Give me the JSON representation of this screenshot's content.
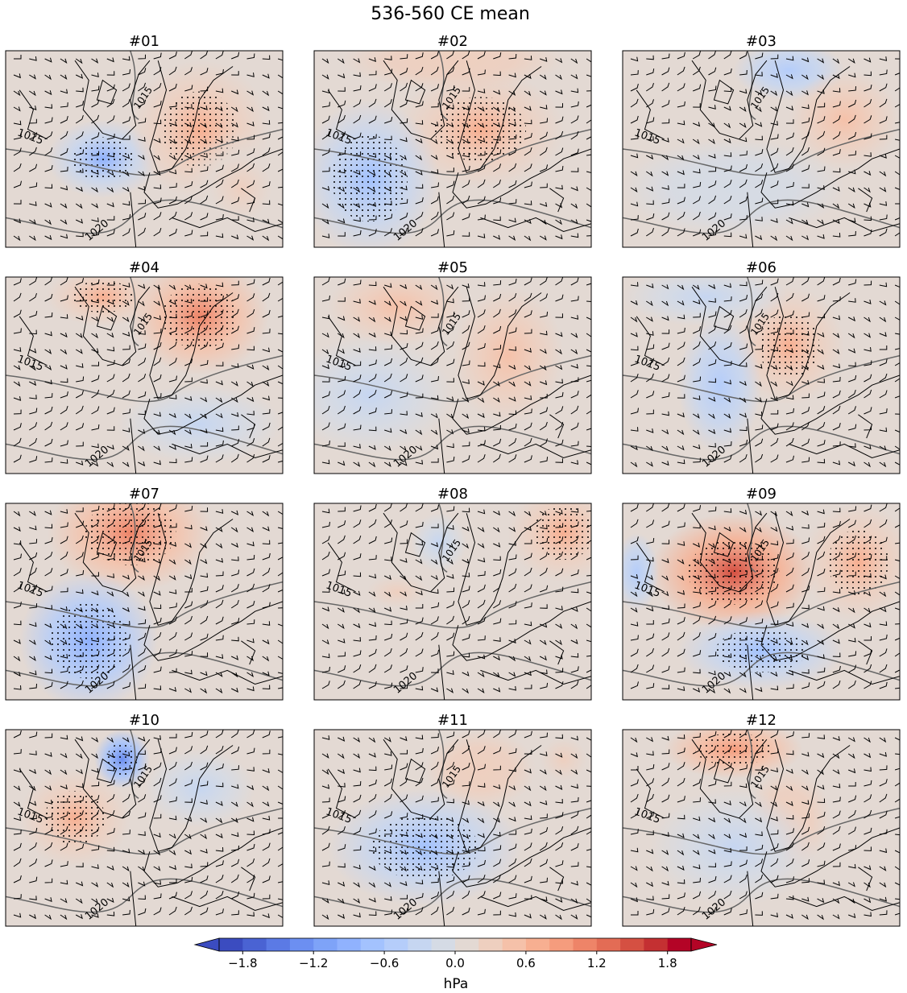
{
  "chart_data": {
    "type": "heatmap",
    "title": "536-560 CE mean",
    "panels": [
      {
        "title": "#01"
      },
      {
        "title": "#02"
      },
      {
        "title": "#03"
      },
      {
        "title": "#04"
      },
      {
        "title": "#05"
      },
      {
        "title": "#06"
      },
      {
        "title": "#07"
      },
      {
        "title": "#08"
      },
      {
        "title": "#09"
      },
      {
        "title": "#10"
      },
      {
        "title": "#11"
      },
      {
        "title": "#12"
      }
    ],
    "contour_labels": [
      "1015",
      "1020"
    ],
    "colorbar": {
      "label": "hPa",
      "levels_min": -2.0,
      "levels_max": 2.0,
      "step": 0.2,
      "extend": "both",
      "ticks": [
        "−1.8",
        "−1.2",
        "−0.6",
        "0.0",
        "0.6",
        "1.2",
        "1.8"
      ],
      "tick_values": [
        -1.8,
        -1.2,
        -0.6,
        0.0,
        0.6,
        1.2,
        1.8
      ],
      "colors": [
        "#3b4cc0",
        "#4a63d3",
        "#5b7ae5",
        "#6c8ff1",
        "#7ea3f8",
        "#90b2fe",
        "#a3c2fe",
        "#b5cdfa",
        "#c6d6f1",
        "#d5dbe5",
        "#e3d9d3",
        "#eecfbf",
        "#f5c1a9",
        "#f7af91",
        "#f59c7d",
        "#ee8468",
        "#e36c55",
        "#d55042",
        "#c43032",
        "#b40426"
      ]
    }
  }
}
